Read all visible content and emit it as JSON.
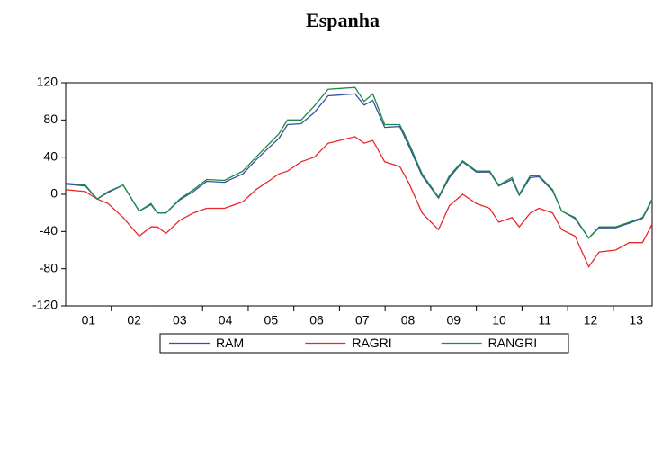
{
  "chart_data": {
    "type": "line",
    "title": "Espanha",
    "x": [
      1.0,
      1.43,
      1.69,
      1.93,
      2.26,
      2.61,
      2.87,
      3.01,
      3.2,
      3.5,
      3.8,
      4.09,
      4.48,
      4.88,
      5.17,
      5.47,
      5.67,
      5.86,
      6.16,
      6.45,
      6.75,
      7.34,
      7.54,
      7.73,
      7.99,
      8.32,
      8.52,
      8.81,
      9.17,
      9.41,
      9.7,
      10.0,
      10.29,
      10.49,
      10.78,
      10.94,
      11.18,
      11.37,
      11.67,
      11.87,
      12.16,
      12.46,
      12.69,
      13.05,
      13.35,
      13.64,
      13.85
    ],
    "series": [
      {
        "name": "RAM",
        "color": "#3a4fa0",
        "values": [
          11,
          9,
          -5,
          2,
          10,
          -18,
          -11,
          -20,
          -20,
          -6,
          3,
          14,
          13,
          22,
          37,
          51,
          60,
          75,
          76,
          88,
          106,
          108,
          96,
          101,
          72,
          73,
          52,
          20,
          -4,
          18,
          35,
          24,
          24,
          9,
          16,
          -1,
          18,
          19,
          4,
          -18,
          -26,
          -47,
          -36,
          -36,
          -31,
          -26,
          -6
        ]
      },
      {
        "name": "RAGRI",
        "color": "#e8282b",
        "values": [
          5,
          3,
          -5,
          -10,
          -25,
          -45,
          -35,
          -35,
          -42,
          -28,
          -20,
          -15,
          -15,
          -8,
          5,
          15,
          22,
          25,
          35,
          40,
          55,
          62,
          55,
          58,
          35,
          30,
          12,
          -20,
          -38,
          -12,
          0,
          -10,
          -15,
          -30,
          -25,
          -35,
          -20,
          -15,
          -20,
          -38,
          -45,
          -78,
          -62,
          -60,
          -52,
          -52,
          -32
        ]
      },
      {
        "name": "RANGRI",
        "color": "#1a8a4a",
        "values": [
          12,
          10,
          -5,
          3,
          10,
          -18,
          -10,
          -20,
          -20,
          -5,
          5,
          16,
          15,
          25,
          40,
          55,
          65,
          80,
          80,
          95,
          113,
          115,
          100,
          108,
          75,
          75,
          55,
          22,
          -3,
          20,
          36,
          25,
          25,
          10,
          18,
          0,
          20,
          20,
          5,
          -18,
          -25,
          -47,
          -35,
          -35,
          -30,
          -25,
          -5
        ]
      }
    ],
    "xlim": [
      1,
      13.85
    ],
    "xticks": [
      {
        "value": 1.5,
        "label": "01"
      },
      {
        "value": 2.5,
        "label": "02"
      },
      {
        "value": 3.5,
        "label": "03"
      },
      {
        "value": 4.5,
        "label": "04"
      },
      {
        "value": 5.5,
        "label": "05"
      },
      {
        "value": 6.5,
        "label": "06"
      },
      {
        "value": 7.5,
        "label": "07"
      },
      {
        "value": 8.5,
        "label": "08"
      },
      {
        "value": 9.5,
        "label": "09"
      },
      {
        "value": 10.5,
        "label": "10"
      },
      {
        "value": 11.5,
        "label": "11"
      },
      {
        "value": 12.5,
        "label": "12"
      },
      {
        "value": 13.5,
        "label": "13"
      }
    ],
    "xminor": [
      2,
      3,
      4,
      5,
      6,
      7,
      8,
      9,
      10,
      11,
      12,
      13
    ],
    "ylim": [
      -120,
      120
    ],
    "yticks": [
      -120,
      -80,
      -40,
      0,
      40,
      80,
      120
    ],
    "grid": false,
    "legend": "bottom"
  }
}
